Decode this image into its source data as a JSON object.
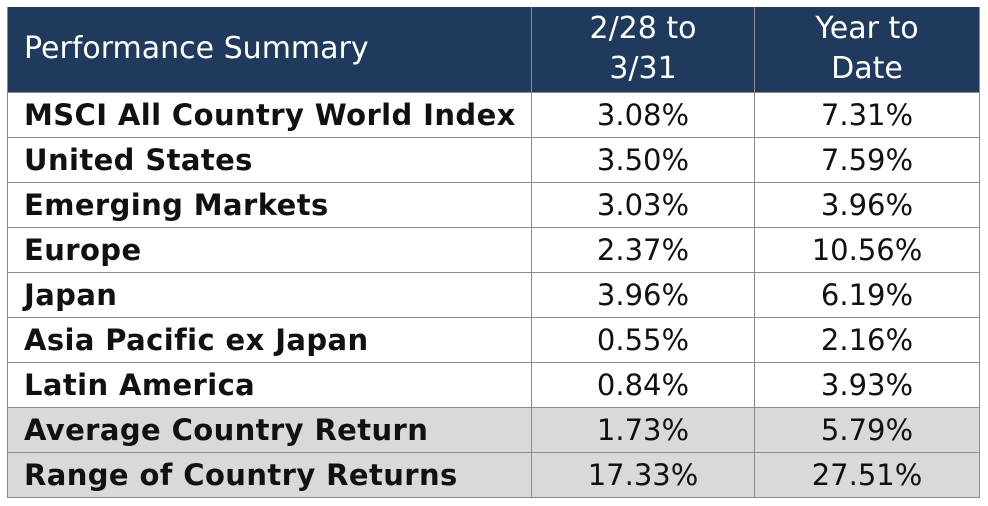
{
  "chart_data": {
    "type": "table",
    "header": {
      "title": "Performance Summary",
      "col_month_line1": "2/28 to",
      "col_month_line2": "3/31",
      "col_ytd_line1": "Year to",
      "col_ytd_line2": "Date"
    },
    "rows": [
      {
        "name": "MSCI All Country World Index",
        "month": "3.08%",
        "ytd": "7.31%"
      },
      {
        "name": "United States",
        "month": "3.50%",
        "ytd": "7.59%"
      },
      {
        "name": "Emerging Markets",
        "month": "3.03%",
        "ytd": "3.96%"
      },
      {
        "name": "Europe",
        "month": "2.37%",
        "ytd": "10.56%"
      },
      {
        "name": "Japan",
        "month": "3.96%",
        "ytd": "6.19%"
      },
      {
        "name": "Asia Pacific ex Japan",
        "month": "0.55%",
        "ytd": "2.16%"
      },
      {
        "name": "Latin America",
        "month": "0.84%",
        "ytd": "3.93%"
      },
      {
        "name": "Average Country Return",
        "month": "1.73%",
        "ytd": "5.79%"
      },
      {
        "name": "Range of Country Returns",
        "month": "17.33%",
        "ytd": "27.51%"
      }
    ],
    "shaded_rows": [
      "Average Country Return",
      "Range of Country Returns"
    ],
    "colors": {
      "header_bg": "#1f3a5c",
      "header_text": "#ffffff",
      "summary_row_bg": "#d9d9d9",
      "border": "#8b8b8b"
    }
  }
}
